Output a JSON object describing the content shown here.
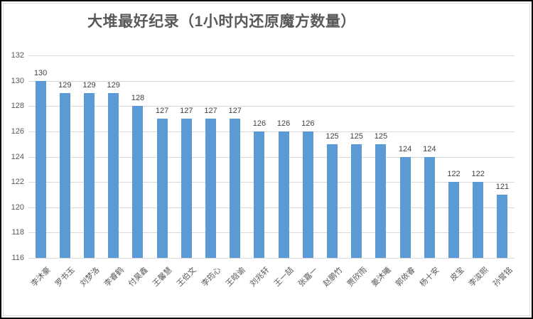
{
  "chart_data": {
    "type": "bar",
    "title": "大堆最好纪录（1小时内还原魔方数量）",
    "categories": [
      "李沐豪",
      "罗书玉",
      "刘梦洛",
      "李睿鹤",
      "付昊鑫",
      "王馨慧",
      "王伯文",
      "李筠心",
      "王晗谕",
      "刘兆轩",
      "王一喆",
      "张嘉一",
      "赵鹏竹",
      "贾欣雨",
      "姜沐曦",
      "郭依睿",
      "杨十安",
      "皮宝",
      "李浚熙",
      "孙誉铭"
    ],
    "values": [
      130,
      129,
      129,
      129,
      128,
      127,
      127,
      127,
      127,
      126,
      126,
      126,
      125,
      125,
      125,
      124,
      124,
      122,
      122,
      121
    ],
    "xlabel": "",
    "ylabel": "",
    "ylim": [
      116,
      132
    ],
    "yticks": [
      116,
      118,
      120,
      122,
      124,
      126,
      128,
      130,
      132
    ],
    "grid": true,
    "legend_position": "none",
    "data_labels": true,
    "bar_color": "#5b9bd5",
    "gridline_color": "#d9d9d9",
    "value_label_color": "#404040",
    "axis_text_color": "#595959",
    "title_color": "#595959"
  }
}
